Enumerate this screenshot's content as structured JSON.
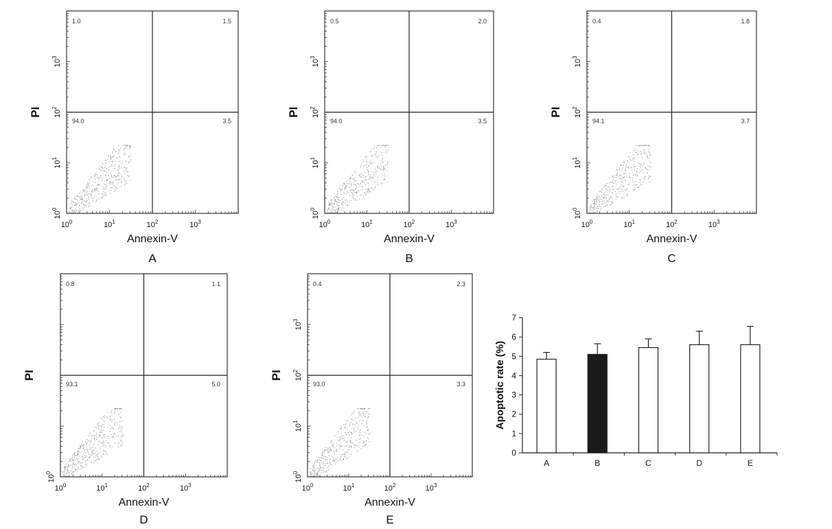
{
  "chart_data": [
    {
      "type": "scatter",
      "panel": "A",
      "xlabel": "Annexin-V",
      "ylabel": "PI",
      "x_ticks": [
        "10^0",
        "10^1",
        "10^2",
        "10^3"
      ],
      "y_ticks": [
        "10^0",
        "10^1",
        "10^2",
        "10^3"
      ],
      "quadrants": {
        "upper_left": "1.0",
        "upper_right": "1.5",
        "lower_left": "94.0",
        "lower_right": "3.5"
      },
      "xlim": [
        1,
        10000
      ],
      "ylim": [
        1,
        10000
      ],
      "log_scale": true
    },
    {
      "type": "scatter",
      "panel": "B",
      "xlabel": "Annexin-V",
      "ylabel": "PI",
      "x_ticks": [
        "10^0",
        "10^1",
        "10^2",
        "10^3"
      ],
      "y_ticks": [
        "10^0",
        "10^1",
        "10^2",
        "10^3"
      ],
      "quadrants": {
        "upper_left": "0.5",
        "upper_right": "2.0",
        "lower_left": "94.0",
        "lower_right": "3.5"
      },
      "xlim": [
        1,
        10000
      ],
      "ylim": [
        1,
        10000
      ],
      "log_scale": true
    },
    {
      "type": "scatter",
      "panel": "C",
      "xlabel": "Annexin-V",
      "ylabel": "PI",
      "x_ticks": [
        "10^0",
        "10^1",
        "10^2",
        "10^3"
      ],
      "y_ticks": [
        "10^0",
        "10^1",
        "10^2",
        "10^3"
      ],
      "quadrants": {
        "upper_left": "0.4",
        "upper_right": "1.8",
        "lower_left": "94.1",
        "lower_right": "3.7"
      },
      "xlim": [
        1,
        10000
      ],
      "ylim": [
        1,
        10000
      ],
      "log_scale": true
    },
    {
      "type": "scatter",
      "panel": "D",
      "xlabel": "Annexin-V",
      "ylabel": "PI",
      "x_ticks": [
        "10^0",
        "10^1",
        "10^2",
        "10^3"
      ],
      "y_ticks": [
        "10^0"
      ],
      "quadrants": {
        "upper_left": "0.8",
        "upper_right": "1.1",
        "lower_left": "93.1",
        "lower_right": "5.0"
      },
      "xlim": [
        1,
        10000
      ],
      "ylim": [
        1,
        10000
      ],
      "log_scale": true
    },
    {
      "type": "scatter",
      "panel": "E",
      "xlabel": "Annexin-V",
      "ylabel": "PI",
      "x_ticks": [
        "10^0",
        "10^1",
        "10^2",
        "10^3"
      ],
      "y_ticks": [
        "10^0",
        "10^1",
        "10^2",
        "10^3"
      ],
      "quadrants": {
        "upper_left": "0.4",
        "upper_right": "2.3",
        "lower_left": "93.0",
        "lower_right": "3.3"
      },
      "xlim": [
        1,
        10000
      ],
      "ylim": [
        1,
        10000
      ],
      "log_scale": true
    },
    {
      "type": "bar",
      "categories": [
        "A",
        "B",
        "C",
        "D",
        "E"
      ],
      "values": [
        4.85,
        5.1,
        5.45,
        5.6,
        5.6
      ],
      "errors": [
        0.35,
        0.55,
        0.45,
        0.7,
        0.95
      ],
      "highlight_category": "B",
      "bar_colors": {
        "default": "#ffffff",
        "highlight": "#1a1a1a"
      },
      "ylabel": "Apoptotic rate (%)",
      "ylim": [
        0,
        7
      ],
      "y_ticks": [
        0,
        1,
        2,
        3,
        4,
        5,
        6,
        7
      ]
    }
  ]
}
